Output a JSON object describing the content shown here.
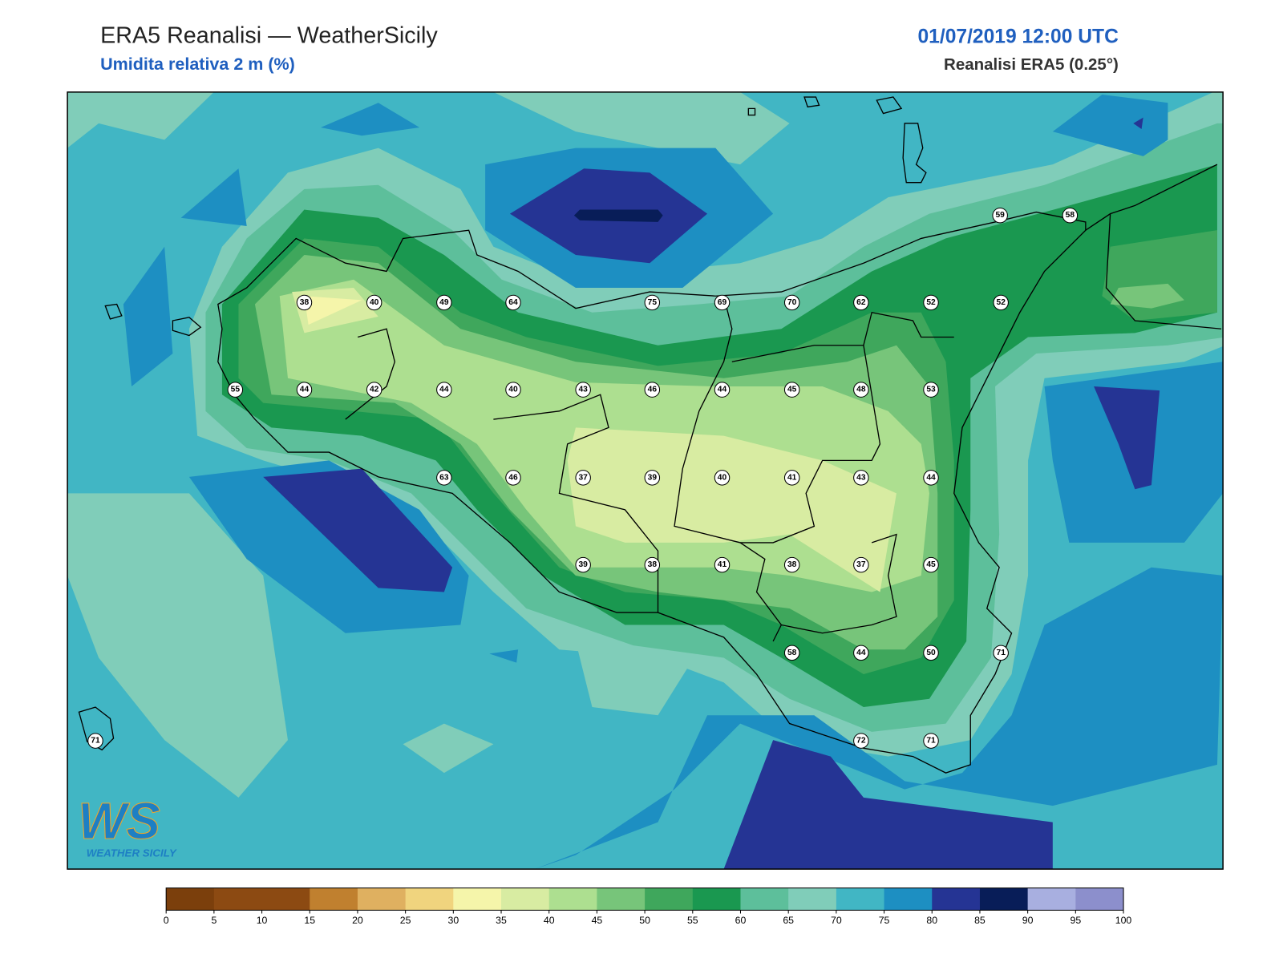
{
  "header": {
    "title": "ERA5 Reanalisi — WeatherSicily",
    "subtitle": "Umidita relativa 2 m (%)",
    "datetime": "01/07/2019 12:00 UTC",
    "source": "Reanalisi ERA5 (0.25°)"
  },
  "map": {
    "stations": [
      59,
      58,
      38,
      40,
      49,
      64,
      75,
      69,
      70,
      62,
      52,
      52,
      55,
      44,
      42,
      44,
      40,
      43,
      46,
      44,
      45,
      48,
      53,
      63,
      46,
      37,
      39,
      40,
      41,
      43,
      44,
      39,
      38,
      41,
      38,
      37,
      45,
      58,
      44,
      50,
      71,
      71,
      72,
      71
    ],
    "logo": {
      "mark": "WS",
      "text": "WEATHER SICILY"
    }
  },
  "colorbar": {
    "ticks": [
      0,
      5,
      10,
      15,
      20,
      25,
      30,
      35,
      40,
      45,
      50,
      55,
      60,
      65,
      70,
      75,
      80,
      85,
      90,
      95,
      100
    ],
    "colors": [
      "#7b3f0c",
      "#8c4a12",
      "#8c4a12",
      "#c0802f",
      "#dfb060",
      "#f0d47e",
      "#f5f5aa",
      "#d8eca2",
      "#addf90",
      "#77c57a",
      "#3fa75c",
      "#1a9850",
      "#5dbf9b",
      "#80cdb9",
      "#41b6c4",
      "#1d8fc2",
      "#253494",
      "#081d58",
      "#a8afe0",
      "#8c8fcc"
    ]
  }
}
